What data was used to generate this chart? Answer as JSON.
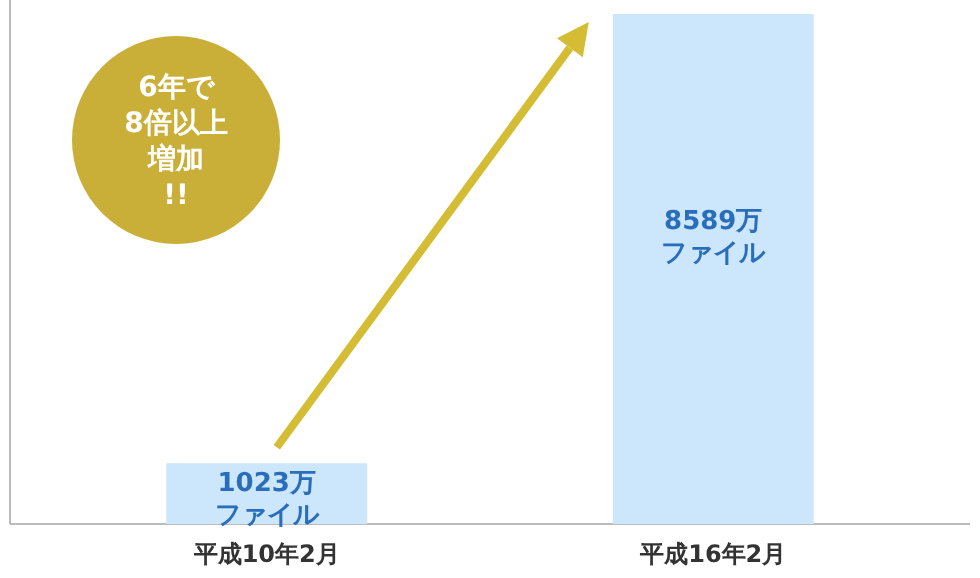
{
  "chart_data": {
    "type": "bar",
    "categories": [
      "平成10年2月",
      "平成16年2月"
    ],
    "values": [
      1023,
      8589
    ],
    "value_labels": [
      "1023万ファイル",
      "8589万ファイル"
    ],
    "color": "#cce6fb",
    "annotations": [
      "6年で",
      "8倍以上",
      "増加",
      "!!"
    ]
  }
}
